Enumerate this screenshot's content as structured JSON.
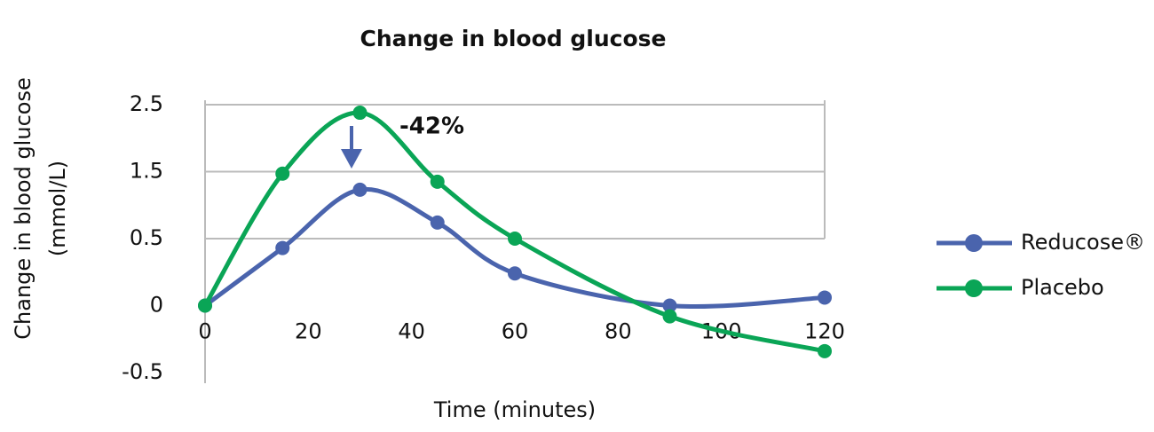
{
  "chart_data": {
    "type": "line",
    "title": "Change in blood glucose",
    "x_label": "Time (minutes)",
    "y_label": [
      "Change in blood glucose",
      "(mmol/L)"
    ],
    "x": [
      0,
      15,
      30,
      45,
      60,
      90,
      120
    ],
    "series": [
      {
        "name": "Reducose®",
        "color": "#4a64ad",
        "values": [
          0,
          0.43,
          1.23,
          0.74,
          0.24,
          0,
          0.06
        ]
      },
      {
        "name": "Placebo",
        "color": "#0aa556",
        "values": [
          0,
          1.47,
          2.38,
          1.35,
          0.5,
          -0.08,
          -0.34
        ]
      }
    ],
    "xlim": [
      0,
      120
    ],
    "xticks": [
      0,
      20,
      40,
      60,
      80,
      100,
      120
    ],
    "ylim": [
      -0.5,
      2.5
    ],
    "yticks": [
      -0.5,
      0,
      0.5,
      1.5,
      2.5
    ],
    "grid": true,
    "annotation": "-42%",
    "legend": "right"
  }
}
